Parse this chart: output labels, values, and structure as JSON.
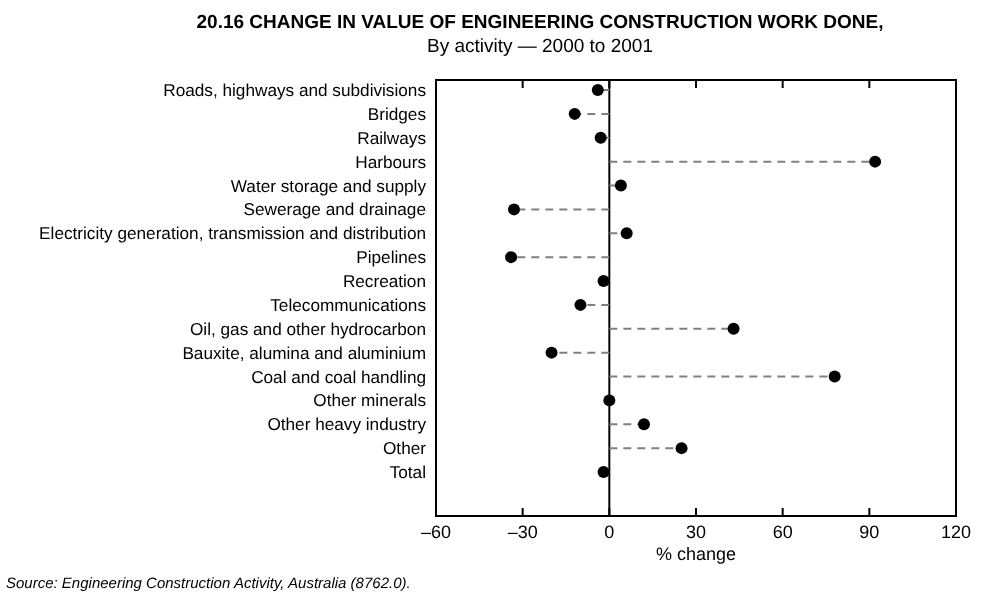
{
  "chart_data": {
    "type": "lollipop",
    "title": "20.16   CHANGE IN VALUE OF ENGINEERING CONSTRUCTION WORK DONE,",
    "subtitle": "By activity — 2000 to 2001",
    "orientation": "horizontal",
    "categories": [
      "Roads, highways and subdivisions",
      "Bridges",
      "Railways",
      "Harbours",
      "Water storage and supply",
      "Sewerage and drainage",
      "Electricity generation, transmission and distribution",
      "Pipelines",
      "Recreation",
      "Telecommunications",
      "Oil, gas and other hydrocarbon",
      "Bauxite, alumina and aluminium",
      "Coal and coal handling",
      "Other minerals",
      "Other heavy industry",
      "Other",
      "Total"
    ],
    "values": [
      -4,
      -12,
      -3,
      92,
      4,
      -33,
      6,
      -34,
      -2,
      -10,
      43,
      -20,
      78,
      0,
      12,
      25,
      -2
    ],
    "color": "#000000",
    "marker": "circle",
    "line_style": "dashed",
    "xlim": [
      -60,
      120
    ],
    "xticks": [
      {
        "value": -60,
        "label": "–60"
      },
      {
        "value": -30,
        "label": "–30"
      },
      0,
      30,
      60,
      90,
      120
    ],
    "xlabel": "% change",
    "annotations": [
      "Source: Engineering Construction Activity, Australia (8762.0)."
    ]
  }
}
